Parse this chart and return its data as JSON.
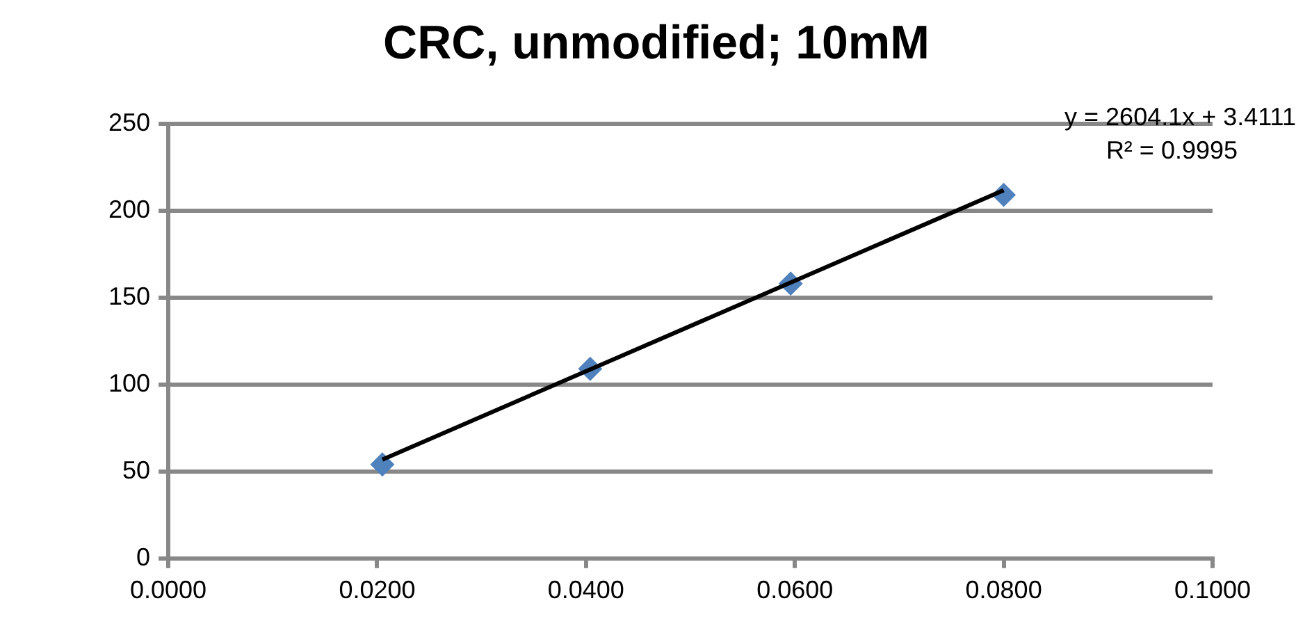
{
  "chart_data": {
    "type": "scatter",
    "title": "CRC, unmodified; 10mM",
    "series": [
      {
        "color": "#4f81bd",
        "marker": "diamond",
        "x": [
          0.0205,
          0.0404,
          0.0596,
          0.08
        ],
        "values": [
          54,
          109,
          158,
          209
        ]
      },
      {
        "type": "line",
        "color": "#000000",
        "marker": "none",
        "line_style": "solid",
        "x": [
          0.0205,
          0.08
        ],
        "values": [
          56.8,
          211.7
        ]
      }
    ],
    "xlim": [
      0,
      0.1
    ],
    "xticks": [
      {
        "value": 0,
        "label": "0.0000"
      },
      {
        "value": 0.02,
        "label": "0.0200"
      },
      {
        "value": 0.04,
        "label": "0.0400"
      },
      {
        "value": 0.06,
        "label": "0.0600"
      },
      {
        "value": 0.08,
        "label": "0.0800"
      },
      {
        "value": 0.1,
        "label": "0.1000"
      }
    ],
    "ylim": [
      0,
      250
    ],
    "yticks": [
      0,
      50,
      100,
      150,
      200,
      250
    ],
    "grid": "y",
    "legend": false,
    "annotations": [
      "y = 2604.1x + 3.4111",
      "R² = 0.9995"
    ]
  }
}
